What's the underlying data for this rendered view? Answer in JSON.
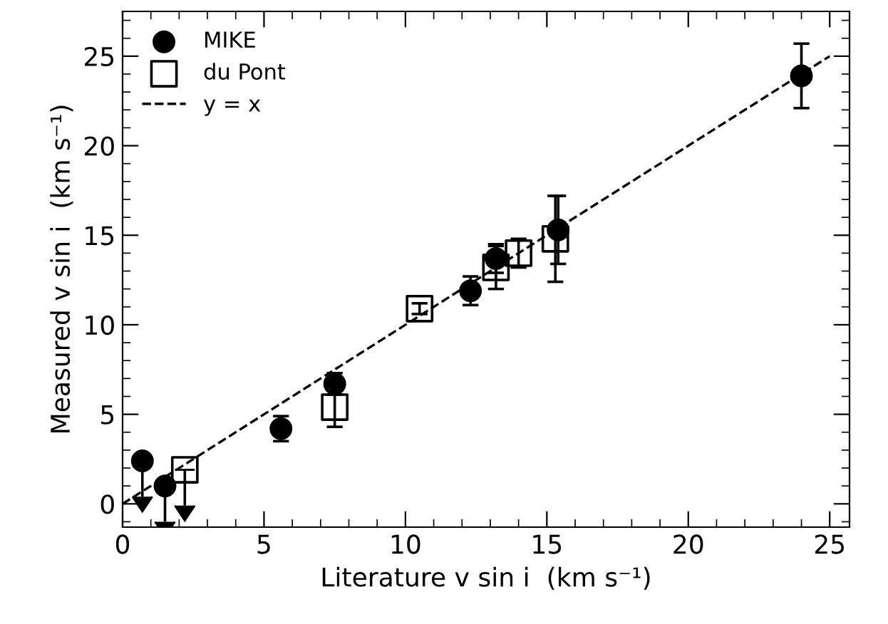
{
  "chart_data": {
    "type": "scatter",
    "xlabel": "Literature v sin i  (km s⁻¹)",
    "ylabel": "Measured v sin i  (km s⁻¹)",
    "xlim": [
      0,
      25.7
    ],
    "ylim": [
      -1.3,
      27.5
    ],
    "xticks": [
      0,
      5,
      10,
      15,
      20,
      25
    ],
    "yticks": [
      0,
      5,
      10,
      15,
      20,
      25
    ],
    "legend": "top left",
    "grid": false,
    "series": [
      {
        "name": "MIKE",
        "marker": "circle",
        "color": "#000000",
        "x": [
          0.7,
          1.5,
          5.6,
          7.5,
          12.3,
          13.2,
          15.4,
          24.0
        ],
        "values": [
          2.4,
          1.0,
          4.2,
          6.7,
          11.9,
          13.7,
          15.3,
          23.9
        ],
        "errors": [
          [
            0.4,
            2.4
          ],
          [
            -1.0,
            1.0
          ],
          0.7,
          0.6,
          0.8,
          0.8,
          1.9,
          1.8
        ]
      },
      {
        "name": "du Pont",
        "marker": "square",
        "color": "#000000",
        "x": [
          2.2,
          7.5,
          10.5,
          13.2,
          14.0,
          15.3
        ],
        "values": [
          1.9,
          5.4,
          10.9,
          13.2,
          14.0,
          14.8
        ],
        "errors": [
          [
            -0.1,
            1.9
          ],
          1.1,
          0.3,
          1.2,
          0.8,
          2.4
        ]
      },
      {
        "name": "y = x",
        "type": "line",
        "marker": "none",
        "line_style": "dashed",
        "color": "#000000",
        "x": [
          0,
          25
        ],
        "values": [
          0,
          25
        ]
      }
    ]
  }
}
